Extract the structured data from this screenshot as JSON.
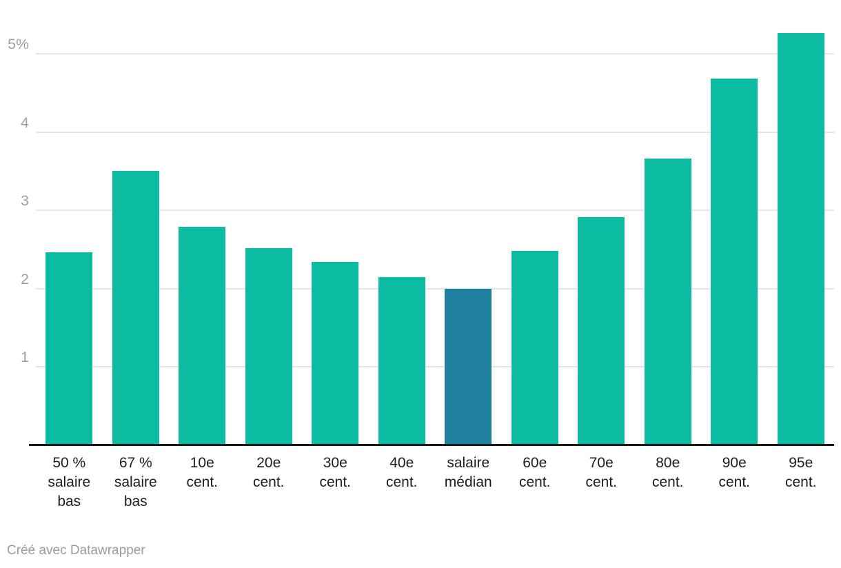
{
  "chart_data": {
    "type": "bar",
    "categories": [
      "50 % salaire bas",
      "67 % salaire bas",
      "10e cent.",
      "20e cent.",
      "30e cent.",
      "40e cent.",
      "salaire médian",
      "60e cent.",
      "70e cent.",
      "80e cent.",
      "90e cent.",
      "95e cent."
    ],
    "category_label_lines": [
      [
        "50 %",
        "salaire",
        "bas"
      ],
      [
        "67 %",
        "salaire",
        "bas"
      ],
      [
        "10e",
        "cent."
      ],
      [
        "20e",
        "cent."
      ],
      [
        "30e",
        "cent."
      ],
      [
        "40e",
        "cent."
      ],
      [
        "salaire",
        "médian"
      ],
      [
        "60e",
        "cent."
      ],
      [
        "70e",
        "cent."
      ],
      [
        "80e",
        "cent."
      ],
      [
        "90e",
        "cent."
      ],
      [
        "95e",
        "cent."
      ]
    ],
    "values": [
      2.47,
      3.51,
      2.79,
      2.52,
      2.34,
      2.15,
      2.0,
      2.48,
      2.92,
      3.66,
      4.69,
      5.27
    ],
    "highlight_index": 6,
    "bar_color": "#0bbba2",
    "highlight_color": "#1f80a0",
    "title": "",
    "xlabel": "",
    "ylabel": "",
    "ylim": [
      0,
      5.69
    ],
    "grid": true,
    "legend": false,
    "y_ticks": [
      {
        "value": 1,
        "label": "1"
      },
      {
        "value": 2,
        "label": "2"
      },
      {
        "value": 3,
        "label": "3"
      },
      {
        "value": 4,
        "label": "4"
      },
      {
        "value": 5,
        "label": "5%"
      }
    ]
  },
  "colors": {
    "gridline": "#e5e5e5",
    "baseline": "#1a1a1a",
    "y_label": "#9e9e9e",
    "x_label": "#1d1d1d",
    "credit": "#9b9b9b"
  },
  "footer": {
    "credit": "Créé avec Datawrapper"
  }
}
